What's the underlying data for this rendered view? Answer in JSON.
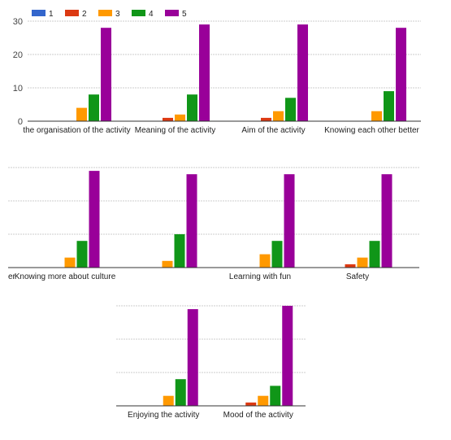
{
  "chart_data": [
    {
      "type": "bar",
      "legend_position": "top-left",
      "legend": [
        "1",
        "2",
        "3",
        "4",
        "5"
      ],
      "colors": [
        "#3366cc",
        "#dc3912",
        "#ff9900",
        "#109618",
        "#990099"
      ],
      "y_ticks": [
        "0",
        "10",
        "20",
        "30"
      ],
      "ylim": [
        0,
        30
      ],
      "grid": true,
      "categories": [
        "the organisation of the activity",
        "Meaning of the activity",
        "Aim of the activity",
        "Knowing each other better"
      ],
      "series": [
        {
          "name": "1",
          "values": [
            0,
            0,
            0,
            0
          ]
        },
        {
          "name": "2",
          "values": [
            0,
            1,
            1,
            0
          ]
        },
        {
          "name": "3",
          "values": [
            4,
            2,
            3,
            3
          ]
        },
        {
          "name": "4",
          "values": [
            8,
            8,
            7,
            9
          ]
        },
        {
          "name": "5",
          "values": [
            28,
            29,
            29,
            28
          ]
        }
      ]
    },
    {
      "type": "bar",
      "ylim": [
        0,
        30
      ],
      "grid": true,
      "colors": [
        "#3366cc",
        "#dc3912",
        "#ff9900",
        "#109618",
        "#990099"
      ],
      "left_edge_label": "er",
      "categories": [
        "Knowing more about culture",
        "",
        "Learning with fun",
        "Safety"
      ],
      "series": [
        {
          "name": "1",
          "values": [
            0,
            0,
            0,
            0
          ]
        },
        {
          "name": "2",
          "values": [
            0,
            0,
            0,
            1
          ]
        },
        {
          "name": "3",
          "values": [
            3,
            2,
            4,
            3
          ]
        },
        {
          "name": "4",
          "values": [
            8,
            10,
            8,
            8
          ]
        },
        {
          "name": "5",
          "values": [
            29,
            28,
            28,
            28
          ]
        }
      ]
    },
    {
      "type": "bar",
      "ylim": [
        0,
        30
      ],
      "grid": true,
      "colors": [
        "#3366cc",
        "#dc3912",
        "#ff9900",
        "#109618",
        "#990099"
      ],
      "categories": [
        "Enjoying the activity",
        "Mood of the activity"
      ],
      "series": [
        {
          "name": "1",
          "values": [
            0,
            0
          ]
        },
        {
          "name": "2",
          "values": [
            0,
            1
          ]
        },
        {
          "name": "3",
          "values": [
            3,
            3
          ]
        },
        {
          "name": "4",
          "values": [
            8,
            6
          ]
        },
        {
          "name": "5",
          "values": [
            29,
            30
          ]
        }
      ]
    }
  ]
}
